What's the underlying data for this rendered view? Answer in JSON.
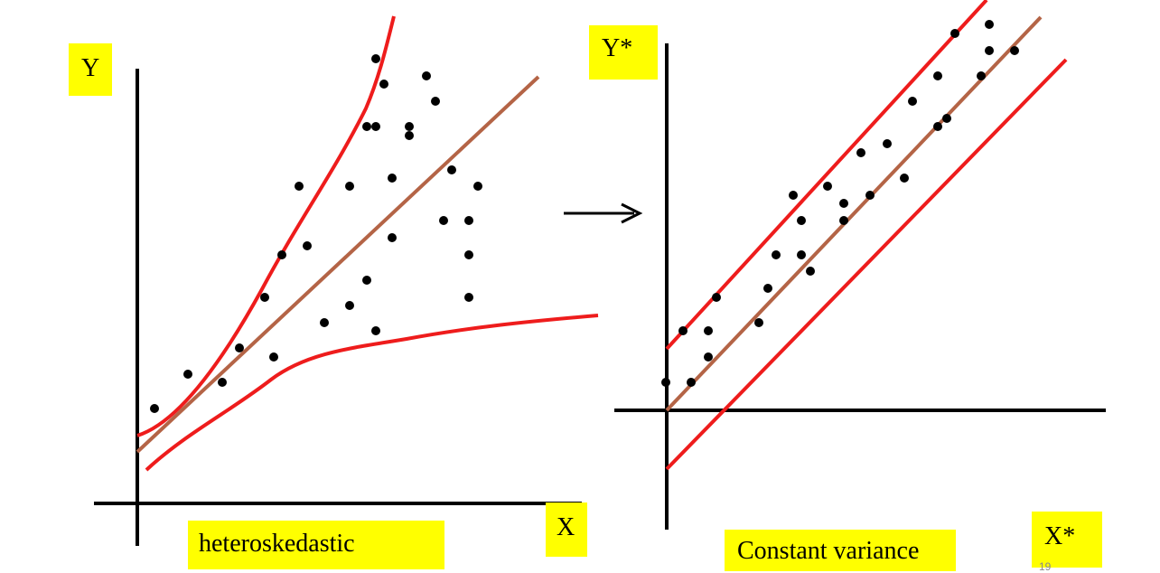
{
  "left_panel": {
    "y_axis_label": "Y",
    "x_axis_label": "X",
    "caption": "heteroskedastic"
  },
  "right_panel": {
    "y_axis_label": "Y*",
    "x_axis_label": "X*",
    "caption": "Constant variance"
  },
  "page_number": "19",
  "colors": {
    "label_background": "#ffff00",
    "band_lines": "#ee1c1c",
    "fit_line": "#b46446",
    "axes": "#000000",
    "points": "#000000"
  }
}
